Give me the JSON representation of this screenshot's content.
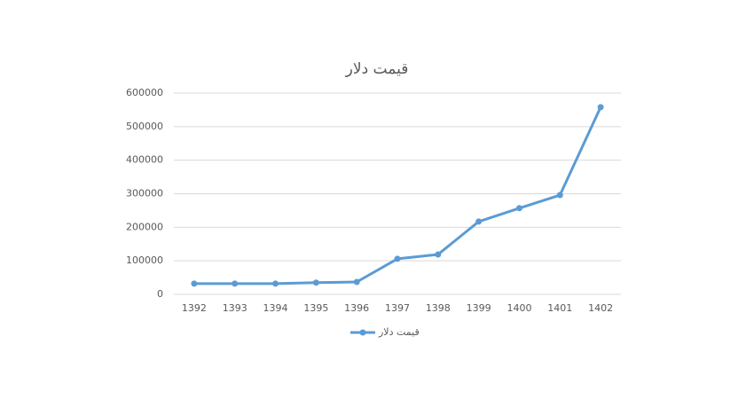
{
  "chart_data": {
    "type": "line",
    "title": "قیمت دلار",
    "categories": [
      "1392",
      "1393",
      "1394",
      "1395",
      "1396",
      "1397",
      "1398",
      "1399",
      "1400",
      "1401",
      "1402"
    ],
    "series": [
      {
        "name": "قیمت دلار",
        "color": "#5b9bd5",
        "values": [
          32000,
          32000,
          32000,
          35000,
          37000,
          106000,
          119000,
          217000,
          257000,
          296000,
          558000
        ]
      }
    ],
    "ylim": [
      0,
      600000
    ],
    "yticks": [
      0,
      100000,
      200000,
      300000,
      400000,
      500000,
      600000
    ],
    "grid": true,
    "legend": "bottom"
  }
}
